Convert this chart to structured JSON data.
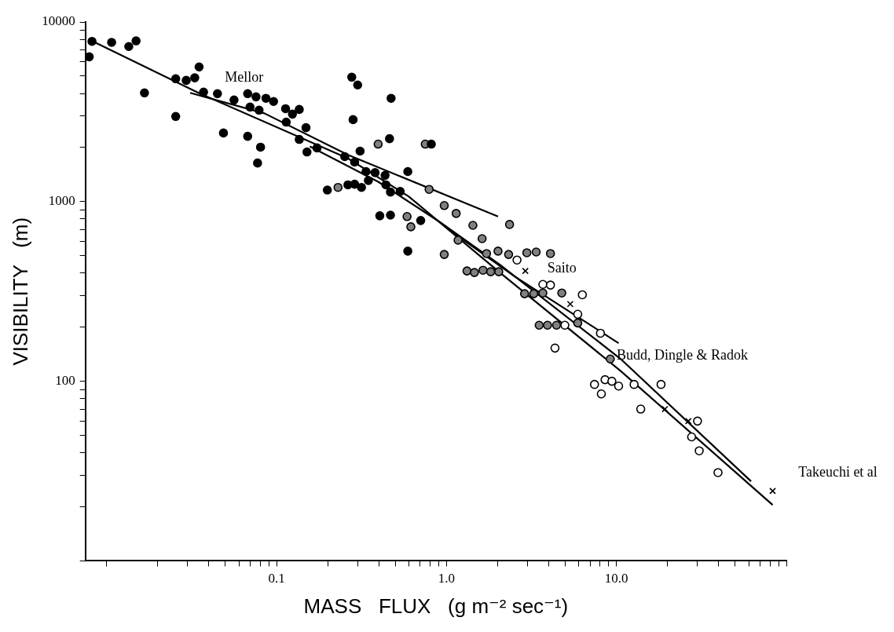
{
  "chart_data": {
    "type": "scatter",
    "xlabel": "MASS   FLUX   (g m⁻² sec⁻¹)",
    "ylabel": "VISIBILITY   (m)",
    "log": "xy",
    "grid": false,
    "legend": false,
    "xlim": [
      0.0075,
      100
    ],
    "ylim": [
      10,
      10000
    ],
    "xticks": [
      {
        "value": 0.01,
        "label": null
      },
      {
        "value": 0.02,
        "label": null
      },
      {
        "value": 0.03,
        "label": null
      },
      {
        "value": 0.04,
        "label": null
      },
      {
        "value": 0.05,
        "label": null
      },
      {
        "value": 0.06,
        "label": null
      },
      {
        "value": 0.07,
        "label": null
      },
      {
        "value": 0.08,
        "label": null
      },
      {
        "value": 0.09,
        "label": null
      },
      0.1,
      {
        "value": 0.2,
        "label": null
      },
      {
        "value": 0.3,
        "label": null
      },
      {
        "value": 0.4,
        "label": null
      },
      {
        "value": 0.5,
        "label": null
      },
      {
        "value": 0.6,
        "label": null
      },
      {
        "value": 0.7,
        "label": null
      },
      {
        "value": 0.8,
        "label": null
      },
      {
        "value": 0.9,
        "label": null
      },
      {
        "value": 1,
        "label": "1.0"
      },
      {
        "value": 2,
        "label": null
      },
      {
        "value": 3,
        "label": null
      },
      {
        "value": 4,
        "label": null
      },
      {
        "value": 5,
        "label": null
      },
      {
        "value": 6,
        "label": null
      },
      {
        "value": 7,
        "label": null
      },
      {
        "value": 8,
        "label": null
      },
      {
        "value": 9,
        "label": null
      },
      {
        "value": 10,
        "label": "10.0"
      },
      {
        "value": 20,
        "label": null
      },
      {
        "value": 30,
        "label": null
      },
      {
        "value": 40,
        "label": null
      },
      {
        "value": 50,
        "label": null
      },
      {
        "value": 60,
        "label": null
      },
      {
        "value": 70,
        "label": null
      },
      {
        "value": 80,
        "label": null
      },
      {
        "value": 90,
        "label": null
      },
      {
        "value": 100,
        "label": null
      }
    ],
    "yticks": [
      {
        "value": 10,
        "label": null
      },
      {
        "value": 20,
        "label": null
      },
      {
        "value": 30,
        "label": null
      },
      {
        "value": 40,
        "label": null
      },
      {
        "value": 50,
        "label": null
      },
      {
        "value": 60,
        "label": null
      },
      {
        "value": 70,
        "label": null
      },
      {
        "value": 80,
        "label": null
      },
      {
        "value": 90,
        "label": null
      },
      100,
      {
        "value": 200,
        "label": null
      },
      {
        "value": 300,
        "label": null
      },
      {
        "value": 400,
        "label": null
      },
      {
        "value": 500,
        "label": null
      },
      {
        "value": 600,
        "label": null
      },
      {
        "value": 700,
        "label": null
      },
      {
        "value": 800,
        "label": null
      },
      {
        "value": 900,
        "label": null
      },
      1000,
      {
        "value": 2000,
        "label": null
      },
      {
        "value": 3000,
        "label": null
      },
      {
        "value": 4000,
        "label": null
      },
      {
        "value": 5000,
        "label": null
      },
      {
        "value": 6000,
        "label": null
      },
      {
        "value": 7000,
        "label": null
      },
      {
        "value": 8000,
        "label": null
      },
      {
        "value": 9000,
        "label": null
      },
      10000
    ],
    "series": [
      {
        "marker": "circle",
        "color": "#000000",
        "x": [
          0.0082,
          0.0079,
          0.0107,
          0.0135,
          0.0149,
          0.0167,
          0.0255,
          0.0255,
          0.0294,
          0.033,
          0.035,
          0.0372,
          0.0449,
          0.0487,
          0.0562,
          0.0676,
          0.0757,
          0.0866,
          0.096,
          0.0676,
          0.0698,
          0.0789,
          0.0805,
          0.0773,
          0.113,
          0.124,
          0.136,
          0.114,
          0.149,
          0.136,
          0.151,
          0.173,
          0.252,
          0.288,
          0.31,
          0.277,
          0.3,
          0.282,
          0.462,
          0.472,
          0.336,
          0.347,
          0.38,
          0.435,
          0.44,
          0.468,
          0.199,
          0.263,
          0.288,
          0.316,
          0.534,
          0.592,
          0.405,
          0.468,
          0.705,
          0.592,
          0.814
        ],
        "values": [
          7800,
          6400,
          7700,
          7300,
          7850,
          4030,
          4830,
          2980,
          4730,
          4890,
          5620,
          4070,
          3990,
          2410,
          3680,
          3990,
          3830,
          3760,
          3610,
          2310,
          3360,
          3230,
          2010,
          1640,
          3290,
          3070,
          3260,
          2770,
          2580,
          2220,
          1890,
          1990,
          1780,
          1660,
          1910,
          4930,
          4460,
          2860,
          2240,
          3760,
          1470,
          1310,
          1450,
          1400,
          1240,
          1130,
          1160,
          1240,
          1250,
          1200,
          1140,
          1470,
          834,
          841,
          785,
          530,
          2090
        ]
      },
      {
        "marker": "circle",
        "color": "#808080",
        "x": [
          0.396,
          0.75,
          0.23,
          0.586,
          0.617,
          0.79,
          0.97,
          1.14,
          0.97,
          1.43,
          2.35,
          1.17,
          1.62,
          1.32,
          1.46,
          1.64,
          1.82,
          2.03,
          1.72,
          2.01,
          2.32,
          2.97,
          3.37,
          4.09,
          2.88,
          3.26,
          3.69,
          4.77,
          3.51,
          3.93,
          4.44,
          5.92,
          9.2
        ],
        "values": [
          2090,
          2090,
          1200,
          826,
          724,
          1170,
          951,
          859,
          508,
          738,
          746,
          610,
          622,
          411,
          403,
          415,
          407,
          407,
          514,
          530,
          508,
          519,
          524,
          514,
          307,
          307,
          310,
          310,
          205,
          205,
          205,
          211,
          133
        ]
      },
      {
        "marker": "circle",
        "color": "#ffffff",
        "x": [
          2.6,
          3.69,
          4.09,
          6.3,
          5.92,
          8.05,
          4.97,
          4.35,
          7.43,
          8.57,
          9.4,
          10.3,
          8.15,
          12.7,
          18.3,
          13.9,
          30,
          27.7,
          30.7,
          39.6
        ],
        "values": [
          473,
          346,
          343,
          303,
          236,
          185,
          205,
          153,
          96,
          102,
          100,
          94,
          85,
          96,
          96,
          70,
          60,
          49,
          41,
          31
        ]
      },
      {
        "marker": "cross",
        "color": "#000000",
        "x": [
          2.91,
          5.35,
          19.3,
          26.5,
          83
        ],
        "values": [
          411,
          269,
          70,
          60,
          24.5
        ]
      },
      {
        "type": "line",
        "marker": "none",
        "color": "#000000",
        "x": [
          0.031,
          0.0848,
          0.263,
          2.01
        ],
        "values": [
          4030,
          3100,
          1820,
          826
        ]
      },
      {
        "type": "line",
        "marker": "none",
        "color": "#000000",
        "x": [
          0.008,
          0.0347,
          0.263,
          0.598,
          2.06,
          10.6,
          83
        ],
        "values": [
          7930,
          4030,
          1740,
          1070,
          403,
          114,
          20.5
        ]
      },
      {
        "type": "line",
        "marker": "none",
        "color": "#000000",
        "x": [
          0.157,
          0.396,
          0.902,
          2.06,
          10.6,
          62
        ],
        "values": [
          2030,
          1290,
          776,
          446,
          133,
          27.7
        ]
      },
      {
        "type": "line",
        "marker": "none",
        "color": "#000000",
        "x": [
          1.07,
          2.52,
          10.3
        ],
        "values": [
          681,
          383,
          163
        ]
      }
    ],
    "annotations": [
      "Mellor",
      "Saito",
      "Budd, Dingle & Radok",
      "Takeuchi et al"
    ]
  }
}
